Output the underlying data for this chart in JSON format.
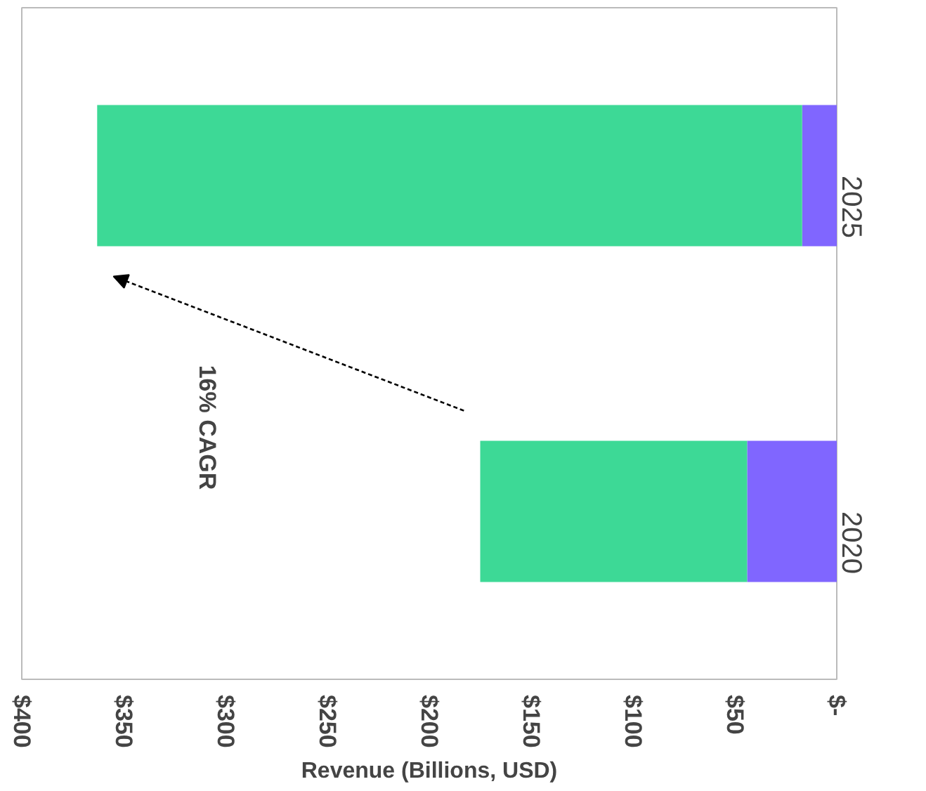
{
  "chart_data": {
    "type": "bar",
    "orientation": "horizontal",
    "stacked": true,
    "xlabel": "Revenue (Billions, USD)",
    "categories": [
      "2025",
      "2020"
    ],
    "series": [
      {
        "color": "#8066ff",
        "values": [
          17,
          44
        ]
      },
      {
        "color": "#3dd996",
        "values": [
          346,
          131
        ]
      }
    ],
    "xlim": [
      400,
      0
    ],
    "xticks": [
      {
        "value": 400,
        "label": "$400"
      },
      {
        "value": 350,
        "label": "$350"
      },
      {
        "value": 300,
        "label": "$300"
      },
      {
        "value": 250,
        "label": "$250"
      },
      {
        "value": 200,
        "label": "$200"
      },
      {
        "value": 150,
        "label": "$150"
      },
      {
        "value": 100,
        "label": "$100"
      },
      {
        "value": 50,
        "label": "$50"
      },
      {
        "value": 0,
        "label": "$-"
      }
    ],
    "annotations": [
      "16% CAGR"
    ],
    "grid": false
  }
}
